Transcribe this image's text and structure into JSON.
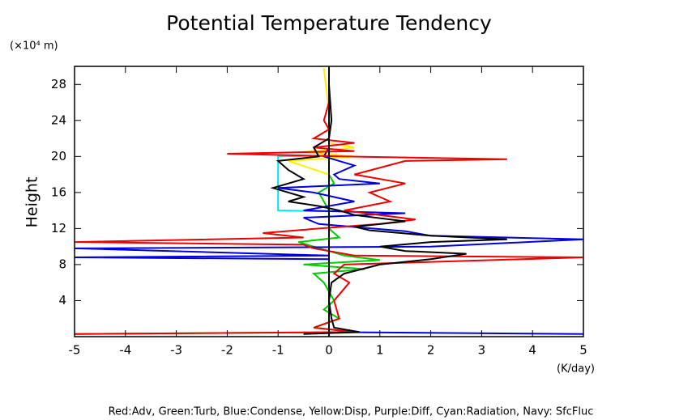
{
  "chart_data": {
    "type": "line",
    "title": "Potential Temperature Tendency",
    "y_label": "Height",
    "y_unit": "(×10⁴ m)",
    "x_unit": "(K/day)",
    "note": "Red:Adv, Green:Turb, Blue:Condense, Yellow:Disp, Purple:Diff, Cyan:Radiation, Navy: SfcFluc",
    "xlim": [
      -5,
      5
    ],
    "xticks": [
      -5,
      -4,
      -3,
      -2,
      -1,
      0,
      1,
      2,
      3,
      4,
      5
    ],
    "ylim": [
      0,
      30
    ],
    "yticks": [
      4,
      8,
      12,
      16,
      20,
      24,
      28
    ],
    "series": [
      {
        "color": "#00cc00",
        "heights": [
          0.3,
          0.5,
          1,
          2,
          3,
          4,
          5,
          6,
          7,
          7.5,
          8,
          8.5,
          9,
          10,
          10.5,
          11,
          12,
          14,
          16,
          17,
          18,
          20,
          29.8
        ],
        "values": [
          -5,
          0.5,
          -0.3,
          0.2,
          -0.1,
          0.1,
          0,
          -0.1,
          -0.3,
          0.7,
          -0.5,
          1,
          0.3,
          -0.3,
          -0.6,
          0.2,
          0,
          0,
          -0.2,
          0.1,
          0,
          0,
          0
        ]
      },
      {
        "color": "#ffee00",
        "heights": [
          0,
          18,
          19.5,
          20,
          20.5,
          21,
          21.5,
          25,
          29.8
        ],
        "values": [
          0,
          0,
          -0.8,
          0.5,
          -0.5,
          0.5,
          0,
          0,
          -0.1
        ]
      },
      {
        "color": "#00e5ee",
        "heights": [
          0,
          13.9,
          14,
          20,
          20.1,
          29.8
        ],
        "values": [
          0,
          0,
          -1,
          -1,
          0,
          0
        ]
      },
      {
        "color": "#0000dd",
        "heights": [
          0.3,
          0.5,
          8.6,
          8.8,
          9,
          9.8,
          10,
          10.8,
          11.2,
          11.7,
          12.5,
          13.2,
          13.7,
          14,
          15,
          16,
          16.5,
          17,
          17.5,
          18,
          19,
          20,
          21,
          29.8
        ],
        "values": [
          5,
          0,
          0,
          -5,
          0,
          -5,
          2,
          5,
          2,
          1.5,
          -0.2,
          -0.5,
          1.5,
          -0.5,
          0.5,
          -0.3,
          -1,
          1,
          0.2,
          0.1,
          0.5,
          -0.1,
          0,
          0
        ]
      },
      {
        "color": "#ee0000",
        "heights": [
          0.3,
          0.5,
          1,
          2,
          4,
          6,
          7,
          8,
          8.8,
          9,
          9.8,
          10.2,
          10.5,
          11,
          11.5,
          12,
          12.5,
          13,
          13.5,
          14,
          15,
          16,
          17,
          18,
          19.5,
          19.7,
          20,
          20.3,
          20.6,
          21,
          21.5,
          22,
          23,
          24,
          26,
          29.8
        ],
        "values": [
          -5,
          0.5,
          -0.3,
          0.2,
          0.1,
          0.4,
          0.1,
          0.3,
          5,
          0.5,
          -0.3,
          -0.5,
          -5,
          -0.5,
          -1.3,
          -0.2,
          1,
          1.7,
          1,
          0.3,
          1.2,
          0.8,
          1.5,
          0.5,
          1.5,
          3.5,
          0.2,
          -2,
          0.5,
          -0.3,
          0.5,
          -0.3,
          0,
          -0.1,
          0,
          0
        ]
      },
      {
        "color": "#000000",
        "heights": [
          0.3,
          0.5,
          1,
          2,
          4,
          6,
          7,
          8,
          8.6,
          9.2,
          9.5,
          10,
          10.5,
          10.8,
          11.2,
          11.8,
          12.2,
          12.8,
          13.5,
          14,
          14.5,
          15,
          15.5,
          16.5,
          17.5,
          18.5,
          19.5,
          20,
          21,
          22,
          24,
          28,
          29.8
        ],
        "values": [
          -0.5,
          0.6,
          0.1,
          0.05,
          0,
          0.05,
          0.3,
          1,
          2,
          2.7,
          1.5,
          1,
          2,
          3.5,
          2,
          0.8,
          0.5,
          1.5,
          0.5,
          0.2,
          -0.2,
          -0.8,
          -0.5,
          -1.1,
          -0.5,
          -0.8,
          -1,
          -0.2,
          -0.3,
          0,
          0.05,
          0,
          0
        ]
      }
    ]
  }
}
